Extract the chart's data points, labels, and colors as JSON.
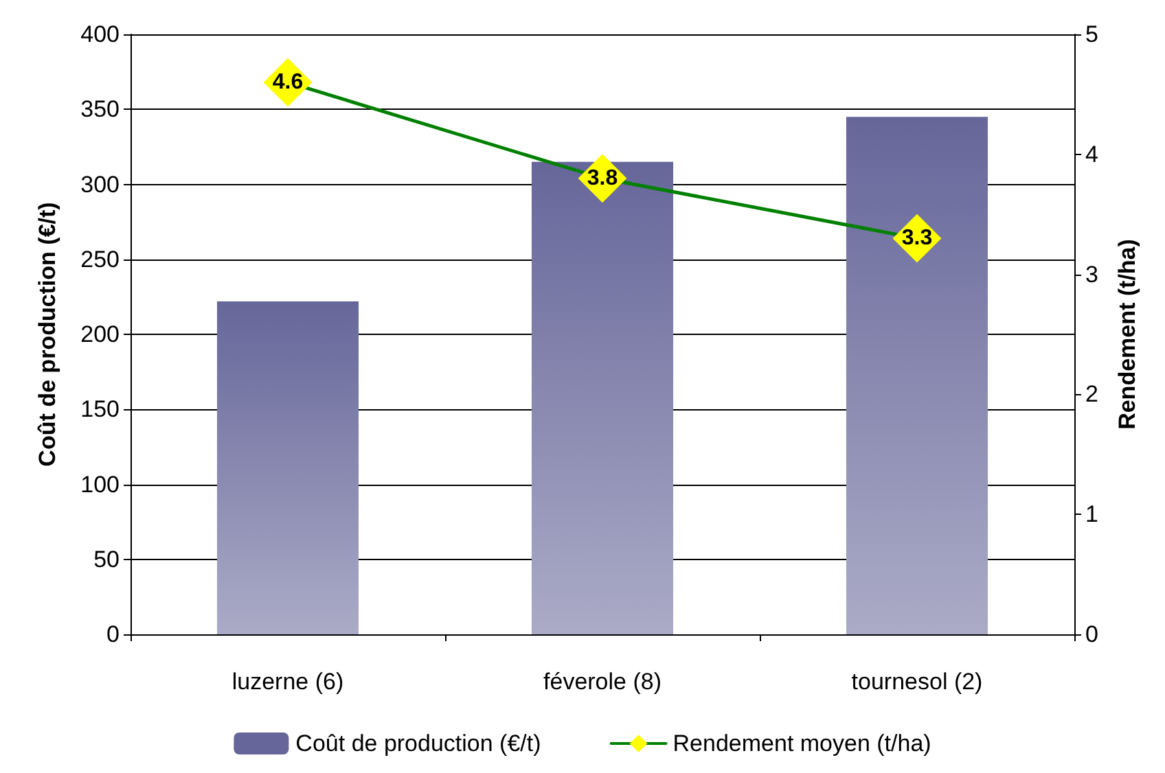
{
  "chart_data": {
    "type": "bar",
    "categories": [
      "luzerne (6)",
      "féverole (8)",
      "tournesol (2)"
    ],
    "ylabel": "Coût de production (€/t)",
    "y2label": "Rendement (t/ha)",
    "ylim": [
      0,
      400
    ],
    "yticks": [
      0,
      50,
      100,
      150,
      200,
      250,
      300,
      350,
      400
    ],
    "y2lim": [
      0,
      5
    ],
    "y2ticks": [
      0,
      1,
      2,
      3,
      4,
      5
    ],
    "grid": "y",
    "legend": "bottom",
    "series": [
      {
        "name": "Coût de production (€/t)",
        "color": "#66669a",
        "values": [
          222,
          315,
          345
        ]
      },
      {
        "name": "Rendement moyen (t/ha)",
        "type": "line",
        "axis": "y2",
        "color": "#008000",
        "marker": "diamond",
        "data_labels": true,
        "values": [
          4.6,
          3.8,
          3.3
        ]
      }
    ]
  }
}
